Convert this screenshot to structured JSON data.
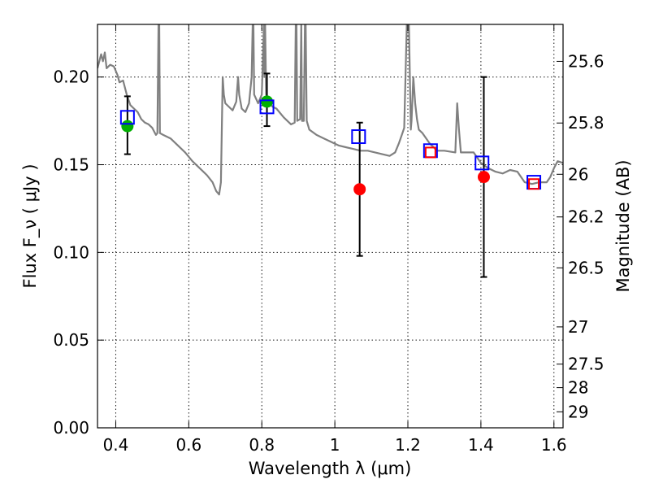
{
  "chart_data": {
    "type": "scatter",
    "xlabel": "Wavelength  λ (μm)",
    "ylabel": "Flux  F_ν  ( μJy )",
    "y2label": "Magnitude (AB)",
    "xlim": [
      0.35,
      1.625
    ],
    "ylim": [
      0.0,
      0.23
    ],
    "grid": true,
    "x_ticks": [
      0.4,
      0.6,
      0.8,
      1.0,
      1.2,
      1.4,
      1.6
    ],
    "x_tick_labels": [
      "0.4",
      "0.6",
      "0.8",
      "1",
      "1.2",
      "1.4",
      "1.6"
    ],
    "y_ticks": [
      0.0,
      0.05,
      0.1,
      0.15,
      0.2
    ],
    "y_tick_labels": [
      "0.00",
      "0.05",
      "0.10",
      "0.15",
      "0.20"
    ],
    "mag_ticks": [
      25.6,
      25.8,
      26,
      26.2,
      26.5,
      27,
      27.5,
      28,
      29
    ],
    "mag_tick_labels": [
      "25.6",
      "25.8",
      "26",
      "26.2",
      "26.5",
      "27",
      "27.5",
      "28",
      "29"
    ],
    "colors": {
      "spectrum": "#808080",
      "observed_green": "#00b000",
      "observed_red": "#ff0000",
      "model_blue": "#0000ff",
      "model_red": "#ff0000",
      "errorbar": "#000000"
    },
    "observed_points": [
      {
        "x": 0.432,
        "y": 0.172,
        "yerr_low": 0.156,
        "yerr_high": 0.189,
        "color": "green"
      },
      {
        "x": 0.814,
        "y": 0.186,
        "yerr_low": 0.172,
        "yerr_high": 0.202,
        "color": "green"
      },
      {
        "x": 1.068,
        "y": 0.136,
        "yerr_low": 0.098,
        "yerr_high": 0.174,
        "color": "red"
      },
      {
        "x": 1.408,
        "y": 0.143,
        "yerr_low": 0.086,
        "yerr_high": 0.2,
        "color": "red"
      }
    ],
    "model_points": [
      {
        "x": 0.432,
        "y": 0.177,
        "color": "blue"
      },
      {
        "x": 0.814,
        "y": 0.183,
        "color": "blue"
      },
      {
        "x": 1.065,
        "y": 0.166,
        "color": "blue"
      },
      {
        "x": 1.262,
        "y": 0.158,
        "color": "blue"
      },
      {
        "x": 1.262,
        "y": 0.157,
        "color": "red"
      },
      {
        "x": 1.403,
        "y": 0.151,
        "color": "blue"
      },
      {
        "x": 1.545,
        "y": 0.14,
        "color": "blue"
      },
      {
        "x": 1.545,
        "y": 0.139,
        "color": "red"
      }
    ],
    "spectrum": [
      [
        0.35,
        0.205
      ],
      [
        0.36,
        0.213
      ],
      [
        0.365,
        0.209
      ],
      [
        0.37,
        0.214
      ],
      [
        0.375,
        0.205
      ],
      [
        0.385,
        0.207
      ],
      [
        0.395,
        0.206
      ],
      [
        0.405,
        0.201
      ],
      [
        0.41,
        0.197
      ],
      [
        0.42,
        0.198
      ],
      [
        0.43,
        0.19
      ],
      [
        0.44,
        0.184
      ],
      [
        0.45,
        0.182
      ],
      [
        0.46,
        0.18
      ],
      [
        0.47,
        0.176
      ],
      [
        0.48,
        0.174
      ],
      [
        0.49,
        0.173
      ],
      [
        0.5,
        0.171
      ],
      [
        0.51,
        0.167
      ],
      [
        0.514,
        0.168
      ],
      [
        0.517,
        0.23
      ],
      [
        0.519,
        0.23
      ],
      [
        0.521,
        0.168
      ],
      [
        0.53,
        0.167
      ],
      [
        0.55,
        0.165
      ],
      [
        0.57,
        0.161
      ],
      [
        0.59,
        0.157
      ],
      [
        0.61,
        0.152
      ],
      [
        0.63,
        0.148
      ],
      [
        0.65,
        0.144
      ],
      [
        0.665,
        0.14
      ],
      [
        0.675,
        0.135
      ],
      [
        0.683,
        0.133
      ],
      [
        0.688,
        0.14
      ],
      [
        0.693,
        0.2
      ],
      [
        0.696,
        0.19
      ],
      [
        0.7,
        0.185
      ],
      [
        0.71,
        0.183
      ],
      [
        0.72,
        0.181
      ],
      [
        0.73,
        0.186
      ],
      [
        0.735,
        0.2
      ],
      [
        0.738,
        0.19
      ],
      [
        0.745,
        0.182
      ],
      [
        0.755,
        0.18
      ],
      [
        0.765,
        0.185
      ],
      [
        0.772,
        0.2
      ],
      [
        0.775,
        0.23
      ],
      [
        0.777,
        0.23
      ],
      [
        0.779,
        0.19
      ],
      [
        0.79,
        0.185
      ],
      [
        0.8,
        0.19
      ],
      [
        0.806,
        0.23
      ],
      [
        0.807,
        0.2
      ],
      [
        0.809,
        0.23
      ],
      [
        0.812,
        0.19
      ],
      [
        0.82,
        0.185
      ],
      [
        0.83,
        0.183
      ],
      [
        0.84,
        0.182
      ],
      [
        0.86,
        0.177
      ],
      [
        0.88,
        0.173
      ],
      [
        0.89,
        0.174
      ],
      [
        0.893,
        0.23
      ],
      [
        0.895,
        0.23
      ],
      [
        0.897,
        0.175
      ],
      [
        0.905,
        0.176
      ],
      [
        0.908,
        0.23
      ],
      [
        0.91,
        0.175
      ],
      [
        0.915,
        0.175
      ],
      [
        0.918,
        0.23
      ],
      [
        0.92,
        0.23
      ],
      [
        0.923,
        0.175
      ],
      [
        0.93,
        0.17
      ],
      [
        0.95,
        0.167
      ],
      [
        0.97,
        0.165
      ],
      [
        0.99,
        0.163
      ],
      [
        1.01,
        0.161
      ],
      [
        1.03,
        0.16
      ],
      [
        1.05,
        0.159
      ],
      [
        1.07,
        0.158
      ],
      [
        1.09,
        0.158
      ],
      [
        1.11,
        0.157
      ],
      [
        1.13,
        0.156
      ],
      [
        1.15,
        0.155
      ],
      [
        1.165,
        0.157
      ],
      [
        1.175,
        0.162
      ],
      [
        1.185,
        0.168
      ],
      [
        1.19,
        0.171
      ],
      [
        1.197,
        0.23
      ],
      [
        1.203,
        0.23
      ],
      [
        1.208,
        0.17
      ],
      [
        1.21,
        0.175
      ],
      [
        1.215,
        0.2
      ],
      [
        1.22,
        0.185
      ],
      [
        1.225,
        0.176
      ],
      [
        1.23,
        0.17
      ],
      [
        1.24,
        0.168
      ],
      [
        1.26,
        0.162
      ],
      [
        1.28,
        0.158
      ],
      [
        1.3,
        0.158
      ],
      [
        1.33,
        0.157
      ],
      [
        1.335,
        0.185
      ],
      [
        1.34,
        0.17
      ],
      [
        1.345,
        0.157
      ],
      [
        1.37,
        0.157
      ],
      [
        1.38,
        0.157
      ],
      [
        1.4,
        0.151
      ],
      [
        1.42,
        0.148
      ],
      [
        1.44,
        0.146
      ],
      [
        1.46,
        0.145
      ],
      [
        1.48,
        0.147
      ],
      [
        1.5,
        0.146
      ],
      [
        1.52,
        0.14
      ],
      [
        1.54,
        0.139
      ],
      [
        1.56,
        0.14
      ],
      [
        1.58,
        0.14
      ],
      [
        1.59,
        0.143
      ],
      [
        1.6,
        0.148
      ],
      [
        1.61,
        0.152
      ],
      [
        1.625,
        0.151
      ]
    ]
  }
}
